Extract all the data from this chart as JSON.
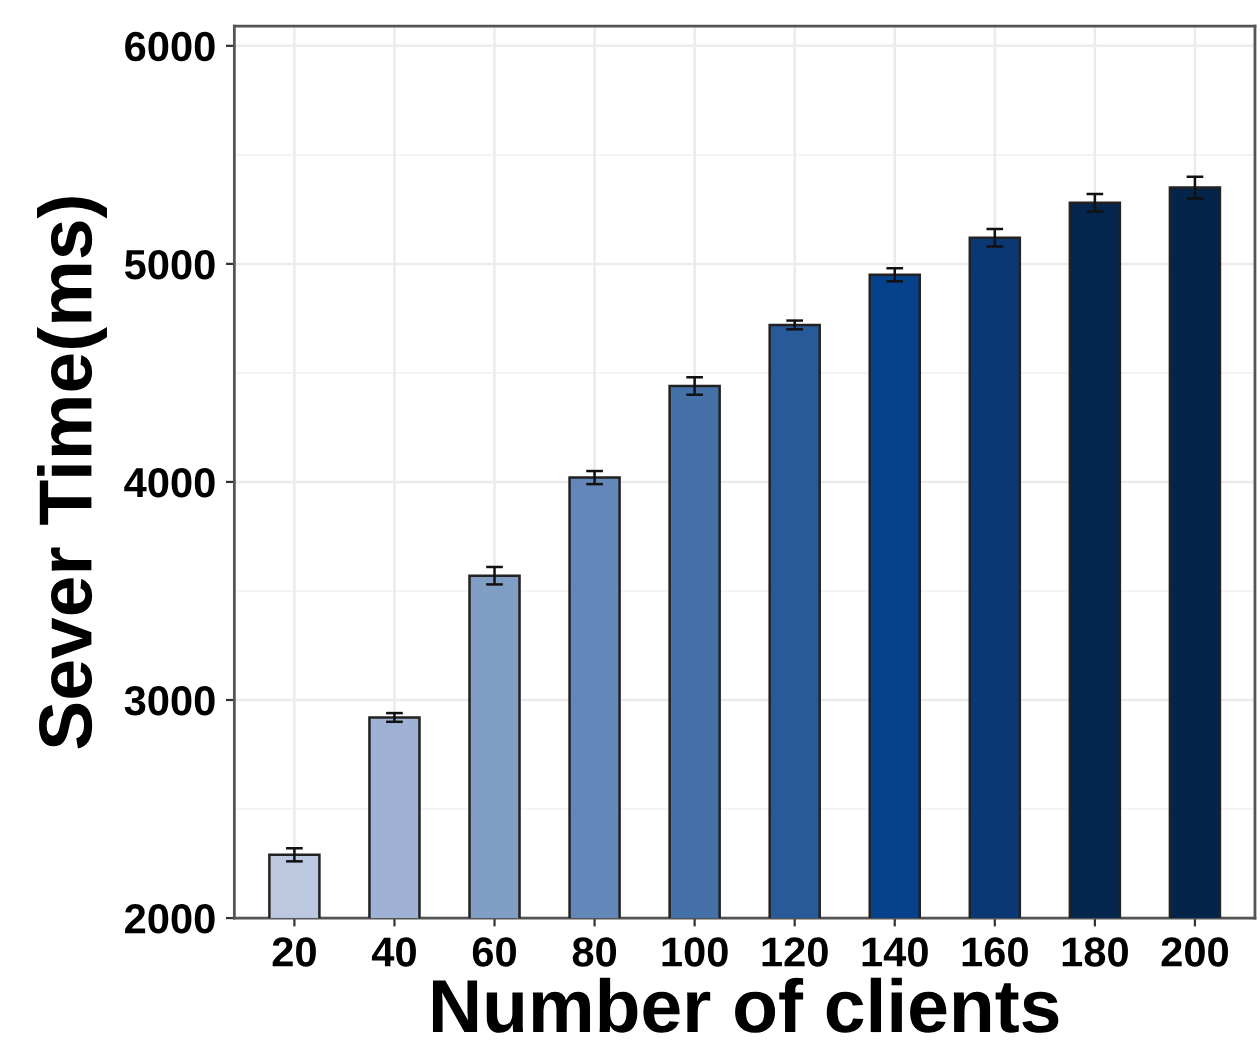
{
  "chart_data": {
    "type": "bar",
    "xlabel": "Number of clients",
    "ylabel": "Sever Time(ms)",
    "categories": [
      "20",
      "40",
      "60",
      "80",
      "100",
      "120",
      "140",
      "160",
      "180",
      "200"
    ],
    "values": [
      2290,
      2920,
      3570,
      4020,
      4440,
      4720,
      4950,
      5120,
      5280,
      5350
    ],
    "errors": [
      30,
      20,
      40,
      30,
      40,
      20,
      30,
      40,
      40,
      50
    ],
    "colors": [
      "#bcc8e0",
      "#9fb2d6",
      "#809dc4",
      "#6487b9",
      "#4371a8",
      "#285a9a",
      "#06428c",
      "#093874",
      "#04254d",
      "#05244a"
    ],
    "ylim": [
      2000,
      6090
    ],
    "yticks": [
      2000,
      3000,
      4000,
      5000,
      6000
    ],
    "grid": true
  }
}
